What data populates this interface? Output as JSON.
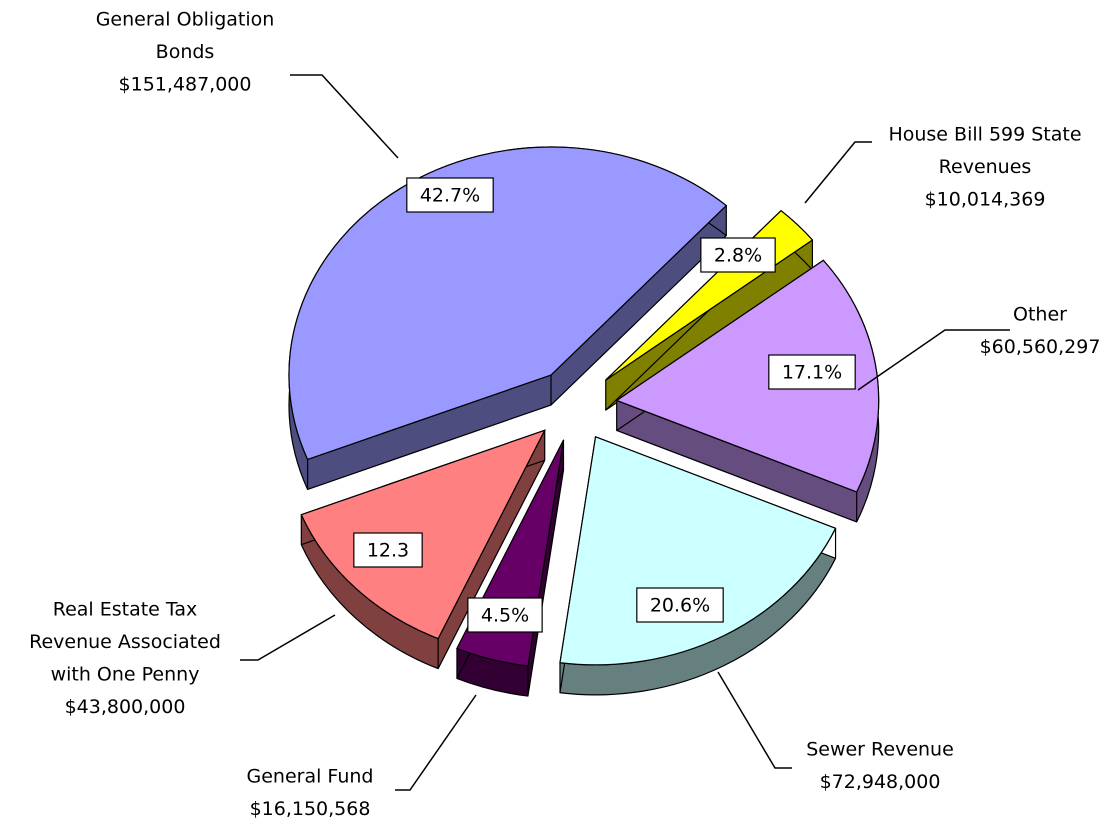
{
  "chart_data": {
    "type": "pie",
    "categories": [
      [
        "House Bill 599 State",
        "Revenues"
      ],
      [
        "Other"
      ],
      [
        "Sewer Revenue"
      ],
      [
        "General Fund"
      ],
      [
        "Real Estate Tax",
        "Revenue Associated",
        "with One Penny"
      ],
      [
        "General Obligation",
        "Bonds"
      ]
    ],
    "amount_labels": [
      "$10,014,369",
      "$60,560,297",
      "$72,948,000",
      "$16,150,568",
      "$43,800,000",
      "$151,487,000"
    ],
    "values": [
      2.8,
      17.1,
      20.6,
      4.5,
      12.3,
      42.7
    ],
    "value_labels": [
      "2.8%",
      "17.1%",
      "20.6%",
      "4.5%",
      "12.3",
      "42.7%"
    ],
    "colors": [
      "#ffff00",
      "#cc99ff",
      "#ccffff",
      "#660066",
      "#ff8080",
      "#9999ff"
    ]
  }
}
